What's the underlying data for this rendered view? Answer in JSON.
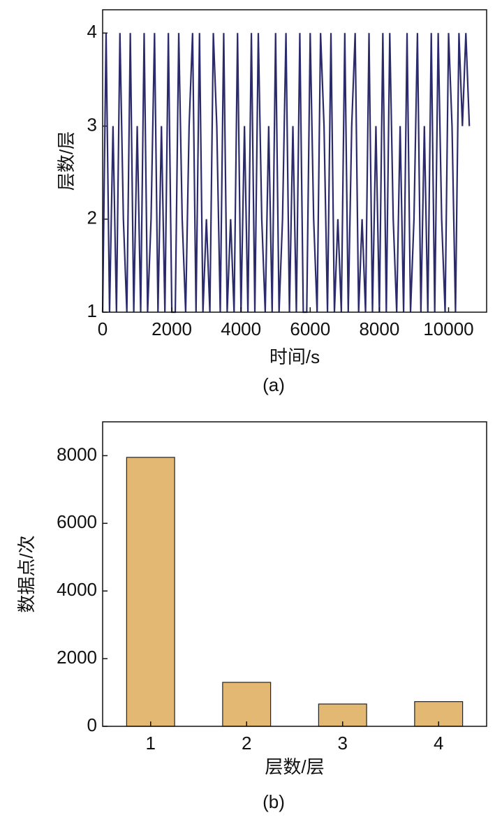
{
  "chart_data": [
    {
      "type": "line",
      "caption": "(a)",
      "xlabel": "时间/s",
      "ylabel": "层数/层",
      "color": "#2b2a6b",
      "x": [
        0,
        100,
        200,
        300,
        400,
        500,
        600,
        700,
        800,
        900,
        1000,
        1100,
        1200,
        1300,
        1400,
        1500,
        1600,
        1700,
        1800,
        1900,
        2000,
        2100,
        2200,
        2300,
        2400,
        2500,
        2600,
        2700,
        2800,
        2900,
        3000,
        3100,
        3200,
        3300,
        3400,
        3500,
        3600,
        3700,
        3800,
        3900,
        4000,
        4100,
        4200,
        4300,
        4400,
        4500,
        4600,
        4700,
        4800,
        4900,
        5000,
        5100,
        5200,
        5300,
        5400,
        5500,
        5600,
        5700,
        5800,
        5900,
        6000,
        6100,
        6200,
        6300,
        6400,
        6500,
        6600,
        6700,
        6800,
        6900,
        7000,
        7100,
        7200,
        7300,
        7400,
        7500,
        7600,
        7700,
        7800,
        7900,
        8000,
        8100,
        8200,
        8300,
        8400,
        8500,
        8600,
        8700,
        8800,
        8900,
        9000,
        9100,
        9200,
        9300,
        9400,
        9500,
        9600,
        9700,
        9800,
        9900,
        10000,
        10100,
        10200,
        10300,
        10400,
        10500,
        10600
      ],
      "values": [
        1,
        4,
        1,
        3,
        1,
        4,
        2,
        1,
        4,
        1,
        3,
        1,
        4,
        1,
        2,
        4,
        1,
        3,
        1,
        4,
        1,
        1,
        4,
        2,
        1,
        3,
        4,
        1,
        4,
        1,
        2,
        1,
        4,
        3,
        1,
        4,
        1,
        2,
        1,
        4,
        1,
        3,
        1,
        4,
        1,
        4,
        2,
        1,
        3,
        1,
        4,
        1,
        2,
        4,
        1,
        3,
        1,
        4,
        1,
        1,
        4,
        2,
        1,
        4,
        3,
        1,
        4,
        1,
        2,
        1,
        4,
        1,
        3,
        4,
        1,
        2,
        1,
        4,
        1,
        3,
        1,
        4,
        1,
        4,
        2,
        1,
        3,
        1,
        4,
        1,
        2,
        4,
        1,
        3,
        1,
        4,
        1,
        4,
        2,
        1,
        4,
        3,
        1,
        4,
        3,
        4,
        3
      ],
      "xlim": [
        0,
        11100
      ],
      "xticks": [
        0,
        2000,
        4000,
        6000,
        8000,
        10000
      ],
      "ylim": [
        1,
        4.25
      ],
      "yticks": [
        1,
        2,
        3,
        4
      ]
    },
    {
      "type": "bar",
      "caption": "(b)",
      "xlabel": "层数/层",
      "ylabel": "数据点/次",
      "color": "#e2b872",
      "categories": [
        "1",
        "2",
        "3",
        "4"
      ],
      "values": [
        7950,
        1300,
        660,
        730
      ],
      "ylim": [
        0,
        9000
      ],
      "yticks": [
        0,
        2000,
        4000,
        6000,
        8000
      ]
    }
  ]
}
